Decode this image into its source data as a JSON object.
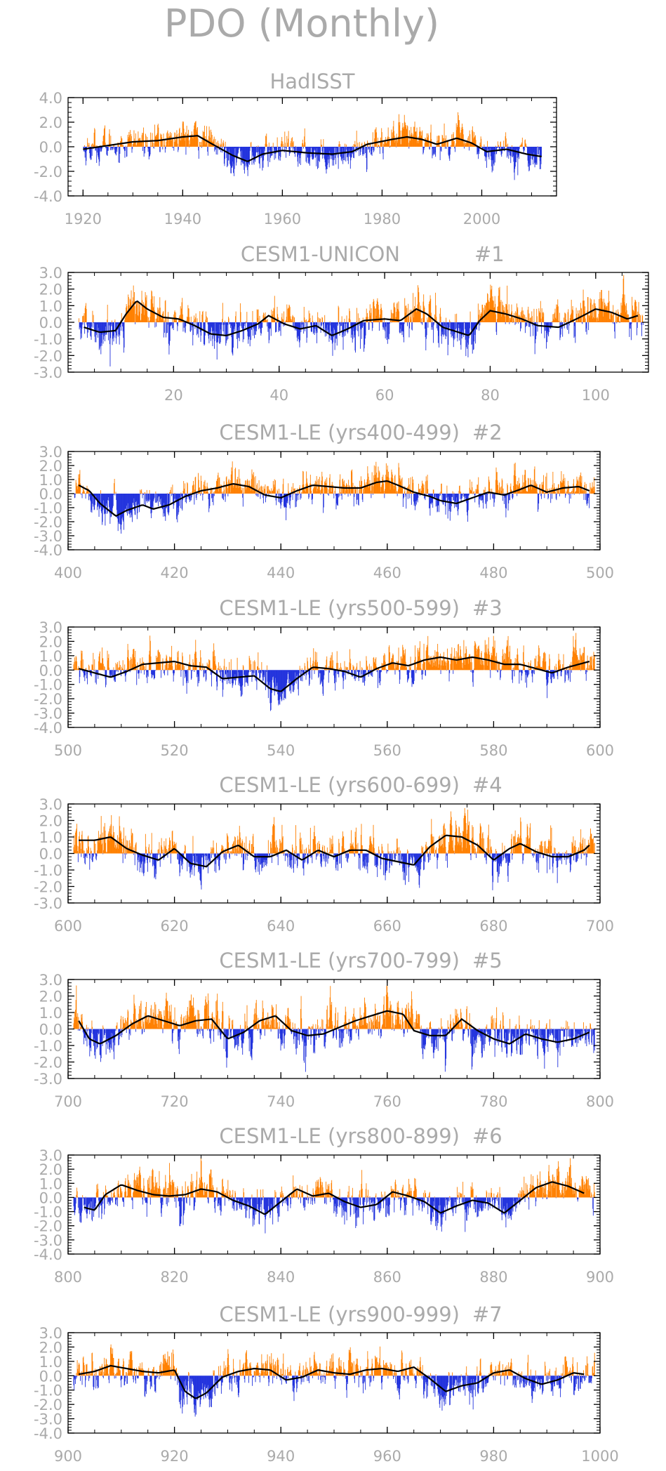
{
  "figure": {
    "title": "PDO (Monthly)"
  },
  "colors": {
    "positive": "#ff8000",
    "negative": "#2233dd",
    "smooth": "#000000",
    "text": "#aaaaaa",
    "axis": "#000000"
  },
  "chart_data": [
    {
      "type": "bar",
      "title": "HadISST",
      "x_range": [
        1920,
        2012
      ],
      "xlim": [
        1917,
        2015
      ],
      "xticks": [
        1920,
        1940,
        1960,
        1980,
        2000
      ],
      "ylim": [
        -4.0,
        4.0
      ],
      "yticks": [
        "4.0",
        "2.0",
        "0.0",
        "-2.0",
        "-4.0"
      ],
      "smooth": [
        [
          1920,
          -0.2
        ],
        [
          1925,
          0.1
        ],
        [
          1930,
          0.4
        ],
        [
          1935,
          0.5
        ],
        [
          1940,
          0.8
        ],
        [
          1943,
          0.9
        ],
        [
          1946,
          0.2
        ],
        [
          1950,
          -0.7
        ],
        [
          1953,
          -1.2
        ],
        [
          1956,
          -0.6
        ],
        [
          1960,
          -0.3
        ],
        [
          1965,
          -0.5
        ],
        [
          1970,
          -0.6
        ],
        [
          1974,
          -0.4
        ],
        [
          1977,
          0.2
        ],
        [
          1982,
          0.6
        ],
        [
          1985,
          0.8
        ],
        [
          1988,
          0.6
        ],
        [
          1991,
          0.2
        ],
        [
          1995,
          0.7
        ],
        [
          1998,
          0.3
        ],
        [
          2001,
          -0.4
        ],
        [
          2005,
          -0.2
        ],
        [
          2009,
          -0.6
        ],
        [
          2012,
          -0.8
        ]
      ]
    },
    {
      "type": "bar",
      "title": "CESM1-UNICON",
      "label": "#1",
      "x_range": [
        2,
        109
      ],
      "xlim": [
        0,
        110
      ],
      "xticks": [
        20,
        40,
        60,
        80,
        100
      ],
      "ylim": [
        -3.0,
        3.0
      ],
      "yticks": [
        "3.0",
        "2.0",
        "1.0",
        "0.0",
        "-1.0",
        "-2.0",
        "-3.0"
      ],
      "smooth": [
        [
          3,
          -0.3
        ],
        [
          6,
          -0.6
        ],
        [
          9,
          -0.5
        ],
        [
          11,
          0.5
        ],
        [
          13,
          1.3
        ],
        [
          15,
          0.8
        ],
        [
          18,
          0.3
        ],
        [
          21,
          0.2
        ],
        [
          24,
          -0.2
        ],
        [
          27,
          -0.7
        ],
        [
          30,
          -0.8
        ],
        [
          33,
          -0.5
        ],
        [
          36,
          -0.1
        ],
        [
          38,
          0.4
        ],
        [
          41,
          -0.1
        ],
        [
          44,
          -0.4
        ],
        [
          47,
          -0.2
        ],
        [
          50,
          -0.8
        ],
        [
          53,
          -0.4
        ],
        [
          56,
          0.1
        ],
        [
          60,
          0.2
        ],
        [
          63,
          0.1
        ],
        [
          66,
          0.8
        ],
        [
          68,
          0.5
        ],
        [
          71,
          -0.3
        ],
        [
          74,
          -0.6
        ],
        [
          76,
          -0.8
        ],
        [
          78,
          0.1
        ],
        [
          80,
          0.7
        ],
        [
          83,
          0.5
        ],
        [
          86,
          0.2
        ],
        [
          89,
          -0.2
        ],
        [
          93,
          -0.3
        ],
        [
          97,
          0.3
        ],
        [
          100,
          0.8
        ],
        [
          103,
          0.6
        ],
        [
          106,
          0.2
        ],
        [
          108,
          0.4
        ]
      ]
    },
    {
      "type": "bar",
      "title": "CESM1-LE (yrs400-499)",
      "label": "#2",
      "x_range": [
        401,
        499
      ],
      "xlim": [
        400,
        500
      ],
      "xticks": [
        400,
        420,
        440,
        460,
        480,
        500
      ],
      "ylim": [
        -4.0,
        3.0
      ],
      "yticks": [
        "3.0",
        "2.0",
        "1.0",
        "0.0",
        "-1.0",
        "-2.0",
        "-3.0",
        "-4.0"
      ],
      "smooth": [
        [
          402,
          0.6
        ],
        [
          404,
          0.2
        ],
        [
          406,
          -0.7
        ],
        [
          409,
          -1.6
        ],
        [
          411,
          -1.2
        ],
        [
          414,
          -0.8
        ],
        [
          416,
          -1.1
        ],
        [
          419,
          -0.8
        ],
        [
          422,
          -0.2
        ],
        [
          425,
          0.2
        ],
        [
          428,
          0.4
        ],
        [
          431,
          0.7
        ],
        [
          434,
          0.5
        ],
        [
          437,
          -0.1
        ],
        [
          440,
          -0.3
        ],
        [
          443,
          0.2
        ],
        [
          446,
          0.6
        ],
        [
          449,
          0.5
        ],
        [
          452,
          0.4
        ],
        [
          455,
          0.4
        ],
        [
          458,
          0.8
        ],
        [
          460,
          0.9
        ],
        [
          462,
          0.6
        ],
        [
          465,
          0.1
        ],
        [
          468,
          -0.2
        ],
        [
          470,
          -0.5
        ],
        [
          473,
          -0.7
        ],
        [
          476,
          -0.3
        ],
        [
          479,
          0.1
        ],
        [
          482,
          -0.1
        ],
        [
          485,
          0.3
        ],
        [
          487,
          0.6
        ],
        [
          490,
          0.1
        ],
        [
          493,
          0.4
        ],
        [
          496,
          0.5
        ],
        [
          498,
          0.2
        ]
      ]
    },
    {
      "type": "bar",
      "title": "CESM1-LE (yrs500-599)",
      "label": "#3",
      "x_range": [
        501,
        599
      ],
      "xlim": [
        500,
        600
      ],
      "xticks": [
        500,
        520,
        540,
        560,
        580,
        600
      ],
      "ylim": [
        -4.0,
        3.0
      ],
      "yticks": [
        "3.0",
        "2.0",
        "1.0",
        "0.0",
        "-1.0",
        "-2.0",
        "-3.0",
        "-4.0"
      ],
      "smooth": [
        [
          502,
          0.1
        ],
        [
          505,
          -0.2
        ],
        [
          508,
          -0.5
        ],
        [
          511,
          -0.1
        ],
        [
          514,
          0.4
        ],
        [
          517,
          0.5
        ],
        [
          520,
          0.6
        ],
        [
          523,
          0.3
        ],
        [
          526,
          0.2
        ],
        [
          529,
          -0.6
        ],
        [
          532,
          -0.5
        ],
        [
          535,
          -0.4
        ],
        [
          538,
          -1.3
        ],
        [
          540,
          -1.5
        ],
        [
          543,
          -0.6
        ],
        [
          546,
          0.2
        ],
        [
          549,
          0.1
        ],
        [
          552,
          -0.1
        ],
        [
          555,
          -0.5
        ],
        [
          558,
          0.1
        ],
        [
          561,
          0.5
        ],
        [
          564,
          0.3
        ],
        [
          567,
          0.7
        ],
        [
          570,
          0.9
        ],
        [
          573,
          0.7
        ],
        [
          576,
          0.9
        ],
        [
          579,
          0.7
        ],
        [
          582,
          0.4
        ],
        [
          585,
          0.4
        ],
        [
          588,
          0.1
        ],
        [
          591,
          -0.2
        ],
        [
          594,
          0.2
        ],
        [
          597,
          0.5
        ],
        [
          598,
          0.6
        ]
      ]
    },
    {
      "type": "bar",
      "title": "CESM1-LE (yrs600-699)",
      "label": "#4",
      "x_range": [
        601,
        699
      ],
      "xlim": [
        600,
        700
      ],
      "xticks": [
        600,
        620,
        640,
        660,
        680,
        700
      ],
      "ylim": [
        -3.0,
        3.0
      ],
      "yticks": [
        "3.0",
        "2.0",
        "1.0",
        "0.0",
        "-1.0",
        "-2.0",
        "-3.0"
      ],
      "smooth": [
        [
          602,
          0.8
        ],
        [
          605,
          0.8
        ],
        [
          608,
          1.0
        ],
        [
          611,
          0.3
        ],
        [
          614,
          -0.1
        ],
        [
          617,
          -0.4
        ],
        [
          620,
          0.3
        ],
        [
          623,
          -0.6
        ],
        [
          626,
          -0.8
        ],
        [
          629,
          0.1
        ],
        [
          632,
          0.5
        ],
        [
          635,
          -0.2
        ],
        [
          638,
          -0.2
        ],
        [
          641,
          0.2
        ],
        [
          644,
          -0.4
        ],
        [
          647,
          0.2
        ],
        [
          650,
          -0.2
        ],
        [
          653,
          0.2
        ],
        [
          656,
          0.2
        ],
        [
          659,
          -0.3
        ],
        [
          662,
          -0.5
        ],
        [
          665,
          -0.7
        ],
        [
          668,
          0.4
        ],
        [
          671,
          1.1
        ],
        [
          674,
          1.0
        ],
        [
          677,
          0.5
        ],
        [
          680,
          -0.4
        ],
        [
          683,
          0.3
        ],
        [
          685,
          0.6
        ],
        [
          688,
          0.1
        ],
        [
          691,
          -0.2
        ],
        [
          694,
          -0.2
        ],
        [
          697,
          0.2
        ],
        [
          698,
          0.5
        ]
      ]
    },
    {
      "type": "bar",
      "title": "CESM1-LE (yrs700-799)",
      "label": "#5",
      "x_range": [
        701,
        799
      ],
      "xlim": [
        700,
        800
      ],
      "xticks": [
        700,
        720,
        740,
        760,
        780,
        800
      ],
      "ylim": [
        -3.0,
        3.0
      ],
      "yticks": [
        "3.0",
        "2.0",
        "1.0",
        "0.0",
        "-1.0",
        "-2.0",
        "-3.0"
      ],
      "smooth": [
        [
          702,
          0.5
        ],
        [
          704,
          -0.6
        ],
        [
          706,
          -0.9
        ],
        [
          709,
          -0.4
        ],
        [
          712,
          0.3
        ],
        [
          715,
          0.8
        ],
        [
          718,
          0.5
        ],
        [
          721,
          0.2
        ],
        [
          724,
          0.5
        ],
        [
          727,
          0.6
        ],
        [
          730,
          -0.6
        ],
        [
          733,
          -0.2
        ],
        [
          736,
          0.5
        ],
        [
          739,
          0.8
        ],
        [
          742,
          -0.1
        ],
        [
          745,
          -0.4
        ],
        [
          748,
          -0.3
        ],
        [
          751,
          0.1
        ],
        [
          754,
          0.5
        ],
        [
          757,
          0.8
        ],
        [
          760,
          1.1
        ],
        [
          763,
          0.9
        ],
        [
          765,
          -0.1
        ],
        [
          768,
          -0.4
        ],
        [
          771,
          -0.4
        ],
        [
          774,
          0.6
        ],
        [
          777,
          -0.1
        ],
        [
          780,
          -0.6
        ],
        [
          783,
          -0.9
        ],
        [
          786,
          -0.3
        ],
        [
          789,
          -0.6
        ],
        [
          792,
          -0.8
        ],
        [
          795,
          -0.6
        ],
        [
          798,
          -0.2
        ]
      ]
    },
    {
      "type": "bar",
      "title": "CESM1-LE (yrs800-899)",
      "label": "#6",
      "x_range": [
        801,
        899
      ],
      "xlim": [
        800,
        900
      ],
      "xticks": [
        800,
        820,
        840,
        860,
        880,
        900
      ],
      "ylim": [
        -4.0,
        3.0
      ],
      "yticks": [
        "3.0",
        "2.0",
        "1.0",
        "0.0",
        "-1.0",
        "-2.0",
        "-3.0",
        "-4.0"
      ],
      "smooth": [
        [
          803,
          -0.7
        ],
        [
          805,
          -0.9
        ],
        [
          807,
          0.2
        ],
        [
          810,
          0.9
        ],
        [
          813,
          0.5
        ],
        [
          816,
          0.2
        ],
        [
          819,
          0.1
        ],
        [
          822,
          0.2
        ],
        [
          825,
          0.6
        ],
        [
          828,
          0.4
        ],
        [
          831,
          -0.2
        ],
        [
          834,
          -0.6
        ],
        [
          837,
          -1.2
        ],
        [
          840,
          -0.3
        ],
        [
          843,
          0.6
        ],
        [
          846,
          0.1
        ],
        [
          849,
          0.3
        ],
        [
          852,
          -0.3
        ],
        [
          855,
          -0.7
        ],
        [
          858,
          -0.5
        ],
        [
          861,
          0.4
        ],
        [
          864,
          0.1
        ],
        [
          867,
          -0.3
        ],
        [
          870,
          -1.1
        ],
        [
          873,
          -0.6
        ],
        [
          876,
          -0.2
        ],
        [
          879,
          -0.4
        ],
        [
          882,
          -1.1
        ],
        [
          885,
          -0.2
        ],
        [
          888,
          0.7
        ],
        [
          891,
          1.1
        ],
        [
          894,
          0.8
        ],
        [
          897,
          0.3
        ]
      ]
    },
    {
      "type": "bar",
      "title": "CESM1-LE (yrs900-999)",
      "label": "#7",
      "x_range": [
        901,
        999
      ],
      "xlim": [
        900,
        1000
      ],
      "xticks": [
        900,
        920,
        940,
        960,
        980,
        1000
      ],
      "ylim": [
        -4.0,
        3.0
      ],
      "yticks": [
        "3.0",
        "2.0",
        "1.0",
        "0.0",
        "-1.0",
        "-2.0",
        "-3.0",
        "-4.0"
      ],
      "smooth": [
        [
          902,
          0.1
        ],
        [
          905,
          0.3
        ],
        [
          908,
          0.7
        ],
        [
          911,
          0.5
        ],
        [
          914,
          0.3
        ],
        [
          917,
          0.2
        ],
        [
          920,
          0.4
        ],
        [
          922,
          -1.1
        ],
        [
          924,
          -1.6
        ],
        [
          926,
          -1.2
        ],
        [
          929,
          -0.1
        ],
        [
          932,
          0.3
        ],
        [
          935,
          0.5
        ],
        [
          938,
          0.4
        ],
        [
          941,
          -0.3
        ],
        [
          944,
          -0.1
        ],
        [
          947,
          0.4
        ],
        [
          950,
          0.2
        ],
        [
          953,
          0.1
        ],
        [
          956,
          0.4
        ],
        [
          959,
          0.5
        ],
        [
          962,
          0.3
        ],
        [
          965,
          0.6
        ],
        [
          968,
          -0.2
        ],
        [
          971,
          -1.1
        ],
        [
          974,
          -0.7
        ],
        [
          977,
          -0.5
        ],
        [
          980,
          0.2
        ],
        [
          983,
          0.4
        ],
        [
          986,
          -0.2
        ],
        [
          989,
          -0.6
        ],
        [
          992,
          -0.3
        ],
        [
          995,
          0.2
        ],
        [
          997,
          0.1
        ]
      ]
    }
  ]
}
